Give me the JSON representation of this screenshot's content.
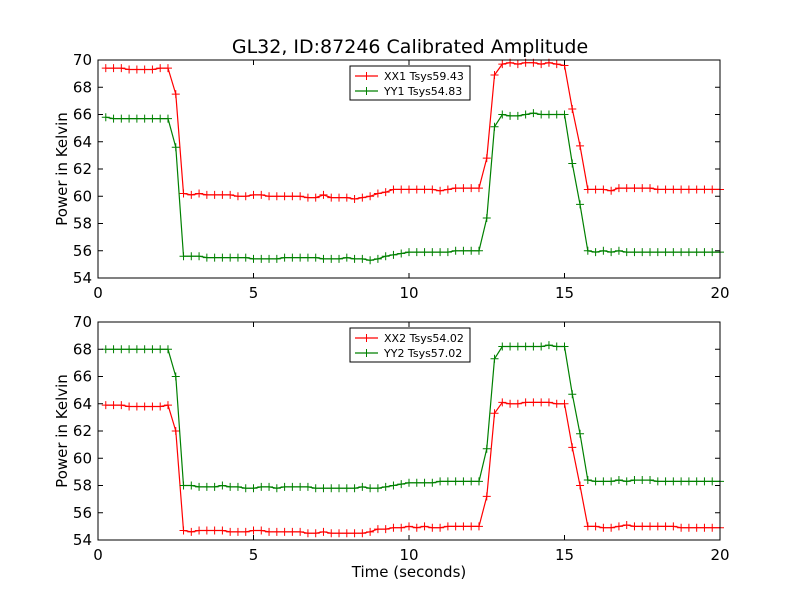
{
  "title": "GL32, ID:87246 Calibrated Amplitude",
  "chart_data": [
    {
      "type": "line",
      "title": "GL32, ID:87246 Calibrated Amplitude",
      "xlabel": "",
      "ylabel": "Power in Kelvin",
      "xlim": [
        0,
        20
      ],
      "ylim": [
        54,
        70
      ],
      "xticks": [
        "0",
        "5",
        "10",
        "15",
        "20"
      ],
      "yticks": [
        "54",
        "56",
        "58",
        "60",
        "62",
        "64",
        "66",
        "68",
        "70"
      ],
      "legend_position": "top-center",
      "x": [
        0.25,
        0.5,
        0.75,
        1,
        1.25,
        1.5,
        1.75,
        2,
        2.25,
        2.5,
        2.75,
        3,
        3.25,
        3.5,
        3.75,
        4,
        4.25,
        4.5,
        4.75,
        5,
        5.25,
        5.5,
        5.75,
        6,
        6.25,
        6.5,
        6.75,
        7,
        7.25,
        7.5,
        7.75,
        8,
        8.25,
        8.5,
        8.75,
        9,
        9.25,
        9.5,
        9.75,
        10,
        10.25,
        10.5,
        10.75,
        11,
        11.25,
        11.5,
        11.75,
        12,
        12.25,
        12.5,
        12.75,
        13,
        13.25,
        13.5,
        13.75,
        14,
        14.25,
        14.5,
        14.75,
        15,
        15.25,
        15.5,
        15.75,
        16,
        16.25,
        16.5,
        16.75,
        17,
        17.25,
        17.5,
        17.75,
        18,
        18.25,
        18.5,
        18.75,
        19,
        19.25,
        19.5,
        19.75,
        20
      ],
      "series": [
        {
          "name": "XX1 Tsys59.43",
          "color": "#ff0000",
          "values": [
            69.4,
            69.4,
            69.4,
            69.3,
            69.3,
            69.3,
            69.3,
            69.4,
            69.4,
            67.5,
            60.2,
            60.1,
            60.2,
            60.1,
            60.1,
            60.1,
            60.1,
            60.0,
            60.0,
            60.1,
            60.1,
            60.0,
            60.0,
            60.0,
            60.0,
            60.0,
            59.9,
            59.9,
            60.1,
            59.9,
            59.9,
            59.9,
            59.8,
            59.9,
            60.0,
            60.2,
            60.3,
            60.5,
            60.5,
            60.5,
            60.5,
            60.5,
            60.5,
            60.4,
            60.5,
            60.6,
            60.6,
            60.6,
            60.6,
            62.8,
            68.9,
            69.7,
            69.8,
            69.7,
            69.8,
            69.8,
            69.7,
            69.8,
            69.7,
            69.6,
            66.4,
            63.7,
            60.5,
            60.5,
            60.5,
            60.4,
            60.6,
            60.6,
            60.6,
            60.6,
            60.6,
            60.5,
            60.5,
            60.5,
            60.5,
            60.5,
            60.5,
            60.5,
            60.5,
            60.5
          ]
        },
        {
          "name": "YY1 Tsys54.83",
          "color": "#008000",
          "values": [
            65.8,
            65.7,
            65.7,
            65.7,
            65.7,
            65.7,
            65.7,
            65.7,
            65.7,
            63.6,
            55.6,
            55.6,
            55.6,
            55.5,
            55.5,
            55.5,
            55.5,
            55.5,
            55.5,
            55.4,
            55.4,
            55.4,
            55.4,
            55.5,
            55.5,
            55.5,
            55.5,
            55.5,
            55.4,
            55.4,
            55.4,
            55.5,
            55.4,
            55.4,
            55.3,
            55.4,
            55.6,
            55.7,
            55.8,
            55.9,
            55.9,
            55.9,
            55.9,
            55.9,
            55.9,
            56.0,
            56.0,
            56.0,
            56.0,
            58.4,
            65.1,
            66.0,
            65.9,
            65.9,
            66.0,
            66.1,
            66.0,
            66.0,
            66.0,
            66.0,
            62.4,
            59.4,
            56.0,
            55.9,
            56.0,
            55.9,
            56.0,
            55.9,
            55.9,
            55.9,
            55.9,
            55.9,
            55.9,
            55.9,
            55.9,
            55.9,
            55.9,
            55.9,
            55.9,
            55.9
          ]
        }
      ]
    },
    {
      "type": "line",
      "title": "",
      "xlabel": "Time (seconds)",
      "ylabel": "Power in Kelvin",
      "xlim": [
        0,
        20
      ],
      "ylim": [
        54,
        70
      ],
      "xticks": [
        "0",
        "5",
        "10",
        "15",
        "20"
      ],
      "yticks": [
        "54",
        "56",
        "58",
        "60",
        "62",
        "64",
        "66",
        "68",
        "70"
      ],
      "legend_position": "top-center",
      "x": [
        0.25,
        0.5,
        0.75,
        1,
        1.25,
        1.5,
        1.75,
        2,
        2.25,
        2.5,
        2.75,
        3,
        3.25,
        3.5,
        3.75,
        4,
        4.25,
        4.5,
        4.75,
        5,
        5.25,
        5.5,
        5.75,
        6,
        6.25,
        6.5,
        6.75,
        7,
        7.25,
        7.5,
        7.75,
        8,
        8.25,
        8.5,
        8.75,
        9,
        9.25,
        9.5,
        9.75,
        10,
        10.25,
        10.5,
        10.75,
        11,
        11.25,
        11.5,
        11.75,
        12,
        12.25,
        12.5,
        12.75,
        13,
        13.25,
        13.5,
        13.75,
        14,
        14.25,
        14.5,
        14.75,
        15,
        15.25,
        15.5,
        15.75,
        16,
        16.25,
        16.5,
        16.75,
        17,
        17.25,
        17.5,
        17.75,
        18,
        18.25,
        18.5,
        18.75,
        19,
        19.25,
        19.5,
        19.75,
        20
      ],
      "series": [
        {
          "name": "XX2 Tsys54.02",
          "color": "#ff0000",
          "values": [
            63.9,
            63.9,
            63.9,
            63.8,
            63.8,
            63.8,
            63.8,
            63.8,
            63.9,
            62.0,
            54.7,
            54.6,
            54.7,
            54.7,
            54.7,
            54.7,
            54.6,
            54.6,
            54.6,
            54.7,
            54.7,
            54.6,
            54.6,
            54.6,
            54.6,
            54.6,
            54.5,
            54.5,
            54.6,
            54.5,
            54.5,
            54.5,
            54.5,
            54.5,
            54.6,
            54.8,
            54.8,
            54.9,
            54.9,
            55.0,
            54.9,
            55.0,
            54.9,
            54.9,
            55.0,
            55.0,
            55.0,
            55.0,
            55.0,
            57.2,
            63.3,
            64.1,
            64.0,
            64.0,
            64.1,
            64.1,
            64.1,
            64.1,
            64.0,
            64.0,
            60.8,
            58.0,
            55.0,
            55.0,
            54.9,
            54.9,
            55.0,
            55.1,
            55.0,
            55.0,
            55.0,
            55.0,
            55.0,
            55.0,
            54.9,
            54.9,
            54.9,
            54.9,
            54.9,
            54.9
          ]
        },
        {
          "name": "YY2 Tsys57.02",
          "color": "#008000",
          "values": [
            68.0,
            68.0,
            68.0,
            68.0,
            68.0,
            68.0,
            68.0,
            68.0,
            68.0,
            66.0,
            58.0,
            58.0,
            57.9,
            57.9,
            57.9,
            58.0,
            57.9,
            57.9,
            57.8,
            57.8,
            57.9,
            57.9,
            57.8,
            57.9,
            57.9,
            57.9,
            57.9,
            57.8,
            57.8,
            57.8,
            57.8,
            57.8,
            57.8,
            57.9,
            57.8,
            57.8,
            57.9,
            58.0,
            58.1,
            58.2,
            58.2,
            58.2,
            58.2,
            58.3,
            58.3,
            58.3,
            58.3,
            58.3,
            58.3,
            60.7,
            67.3,
            68.2,
            68.2,
            68.2,
            68.2,
            68.2,
            68.2,
            68.3,
            68.2,
            68.2,
            64.7,
            61.8,
            58.4,
            58.3,
            58.3,
            58.3,
            58.4,
            58.3,
            58.4,
            58.4,
            58.4,
            58.3,
            58.3,
            58.3,
            58.3,
            58.3,
            58.3,
            58.3,
            58.3,
            58.3
          ]
        }
      ]
    }
  ]
}
